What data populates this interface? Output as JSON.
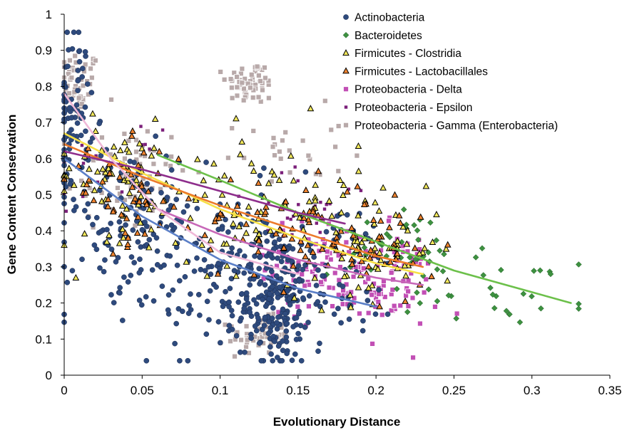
{
  "chart_data": {
    "type": "scatter",
    "title": "",
    "xlabel": "Evolutionary Distance",
    "ylabel": "Gene Content Conservation",
    "xlim": [
      0,
      0.35
    ],
    "ylim": [
      0,
      1
    ],
    "x_ticks": [
      "0",
      "0.05",
      "0.1",
      "0.15",
      "0.2",
      "0.25",
      "0.3",
      "0.35"
    ],
    "y_ticks": [
      "0",
      "0.1",
      "0.2",
      "0.3",
      "0.4",
      "0.5",
      "0.6",
      "0.7",
      "0.8",
      "0.9",
      "1"
    ],
    "grid": false,
    "legend_position": "top-right",
    "series": [
      {
        "name": "Actinobacteria",
        "marker": "circle",
        "color": "#2e4a7d",
        "clusters": [
          {
            "cx": 0.005,
            "cy": 0.72,
            "sx": 0.006,
            "sy": 0.12,
            "n": 90
          },
          {
            "cx": 0.04,
            "cy": 0.4,
            "sx": 0.025,
            "sy": 0.12,
            "n": 120
          },
          {
            "cx": 0.1,
            "cy": 0.28,
            "sx": 0.03,
            "sy": 0.12,
            "n": 130
          },
          {
            "cx": 0.135,
            "cy": 0.22,
            "sx": 0.012,
            "sy": 0.1,
            "n": 200
          },
          {
            "cx": 0.175,
            "cy": 0.28,
            "sx": 0.02,
            "sy": 0.1,
            "n": 70
          }
        ],
        "trend": {
          "x": [
            0,
            0.05,
            0.1,
            0.15,
            0.2
          ],
          "y": [
            0.6,
            0.44,
            0.32,
            0.24,
            0.19
          ]
        }
      },
      {
        "name": "Bacteroidetes",
        "marker": "diamond",
        "color": "#3d9140",
        "clusters": [
          {
            "cx": 0.22,
            "cy": 0.34,
            "sx": 0.025,
            "sy": 0.06,
            "n": 40
          },
          {
            "cx": 0.28,
            "cy": 0.24,
            "sx": 0.03,
            "sy": 0.05,
            "n": 30
          }
        ],
        "trend": {
          "x": [
            0.06,
            0.1,
            0.15,
            0.2,
            0.25,
            0.3,
            0.325
          ],
          "y": [
            0.61,
            0.54,
            0.45,
            0.37,
            0.29,
            0.23,
            0.2
          ]
        }
      },
      {
        "name": "Firmicutes - Clostridia",
        "marker": "triangle",
        "color": "#f2e85b",
        "clusters": [
          {
            "cx": 0.03,
            "cy": 0.55,
            "sx": 0.02,
            "sy": 0.08,
            "n": 60
          },
          {
            "cx": 0.12,
            "cy": 0.48,
            "sx": 0.035,
            "sy": 0.1,
            "n": 80
          },
          {
            "cx": 0.2,
            "cy": 0.35,
            "sx": 0.02,
            "sy": 0.07,
            "n": 60
          }
        ],
        "trend": {
          "x": [
            0,
            0.05,
            0.1,
            0.15,
            0.2,
            0.23
          ],
          "y": [
            0.67,
            0.56,
            0.46,
            0.38,
            0.31,
            0.28
          ]
        }
      },
      {
        "name": "Firmicutes - Lactobacillales",
        "marker": "triangle",
        "color": "#f0832e",
        "clusters": [
          {
            "cx": 0.04,
            "cy": 0.5,
            "sx": 0.02,
            "sy": 0.07,
            "n": 50
          },
          {
            "cx": 0.14,
            "cy": 0.42,
            "sx": 0.03,
            "sy": 0.08,
            "n": 60
          },
          {
            "cx": 0.2,
            "cy": 0.34,
            "sx": 0.02,
            "sy": 0.06,
            "n": 40
          }
        ],
        "trend": {
          "x": [
            0,
            0.05,
            0.1,
            0.15,
            0.2,
            0.23
          ],
          "y": [
            0.64,
            0.55,
            0.47,
            0.4,
            0.33,
            0.3
          ]
        }
      },
      {
        "name": "Proteobacteria - Delta",
        "marker": "square",
        "color": "#c24fb5",
        "clusters": [
          {
            "cx": 0.17,
            "cy": 0.3,
            "sx": 0.02,
            "sy": 0.07,
            "n": 90
          },
          {
            "cx": 0.21,
            "cy": 0.25,
            "sx": 0.015,
            "sy": 0.07,
            "n": 70
          }
        ],
        "trend": {
          "x": [
            0.06,
            0.1,
            0.15,
            0.2,
            0.23
          ],
          "y": [
            0.46,
            0.39,
            0.32,
            0.27,
            0.25
          ]
        }
      },
      {
        "name": "Proteobacteria - Epsilon",
        "marker": "small-square",
        "color": "#7b1f7a",
        "clusters": [
          {
            "cx": 0.02,
            "cy": 0.58,
            "sx": 0.02,
            "sy": 0.05,
            "n": 20
          },
          {
            "cx": 0.16,
            "cy": 0.45,
            "sx": 0.03,
            "sy": 0.06,
            "n": 25
          }
        ],
        "trend": {
          "x": [
            0,
            0.05,
            0.1,
            0.15,
            0.18
          ],
          "y": [
            0.62,
            0.57,
            0.51,
            0.45,
            0.42
          ]
        }
      },
      {
        "name": "Proteobacteria - Gamma (Enterobacteria)",
        "marker": "square",
        "color": "#b8a9a9",
        "clusters": [
          {
            "cx": 0.008,
            "cy": 0.8,
            "sx": 0.008,
            "sy": 0.05,
            "n": 60
          },
          {
            "cx": 0.04,
            "cy": 0.55,
            "sx": 0.02,
            "sy": 0.08,
            "n": 70
          },
          {
            "cx": 0.12,
            "cy": 0.81,
            "sx": 0.008,
            "sy": 0.03,
            "n": 60
          },
          {
            "cx": 0.125,
            "cy": 0.11,
            "sx": 0.01,
            "sy": 0.025,
            "n": 60
          },
          {
            "cx": 0.14,
            "cy": 0.62,
            "sx": 0.02,
            "sy": 0.06,
            "n": 25
          }
        ],
        "trend": {
          "x": [
            0,
            0.03,
            0.06,
            0.1,
            0.15
          ],
          "y": [
            0.78,
            0.6,
            0.46,
            0.34,
            0.28
          ]
        }
      }
    ]
  }
}
